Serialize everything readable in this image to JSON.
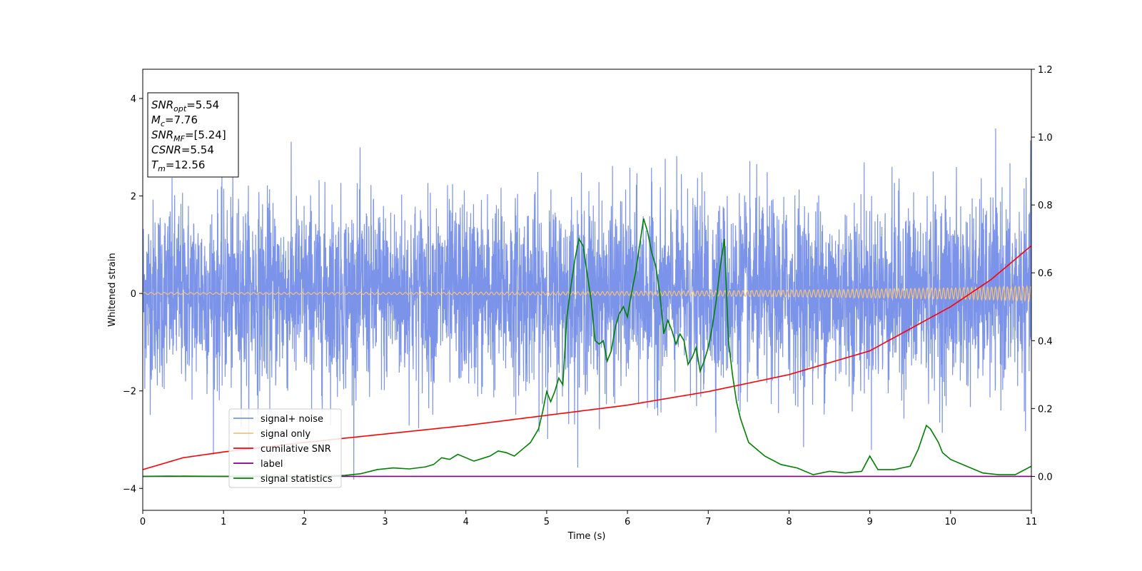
{
  "chart_data": {
    "type": "line",
    "xlabel": "Time (s)",
    "ylabel": "Whitened strain",
    "xlim": [
      0,
      11
    ],
    "ylim": [
      -4.45,
      4.6
    ],
    "y2lim": [
      -0.1,
      1.2
    ],
    "xticks": [
      "0",
      "1",
      "2",
      "3",
      "4",
      "5",
      "6",
      "7",
      "8",
      "9",
      "10",
      "11"
    ],
    "yticks": [
      "-4",
      "-2",
      "0",
      "2",
      "4"
    ],
    "y2ticks": [
      "0.0",
      "0.2",
      "0.4",
      "0.6",
      "0.8",
      "1.0",
      "1.2"
    ],
    "grid": false,
    "legend_placement": "lower-left",
    "info_box": [
      {
        "var": "SNR",
        "sub": "opt",
        "value": "=5.54"
      },
      {
        "var": "M",
        "sub": "c",
        "value": "=7.76"
      },
      {
        "var": "SNR",
        "sub": "MF",
        "value": "=[5.24]"
      },
      {
        "var": "CSNR",
        "sub": "",
        "value": "=5.54"
      },
      {
        "var": "T",
        "sub": "m",
        "value": "=12.56"
      }
    ],
    "series": [
      {
        "name": "signal+ noise",
        "axis": "left",
        "color": "#7b93e8",
        "kind": "noise",
        "noise_sigma": 1.0,
        "description_values": {
          "typical_range": [
            -2.7,
            2.7
          ],
          "max": 4.18,
          "min": -4.05
        }
      },
      {
        "name": "signal only",
        "axis": "left",
        "color": "#f5c27a",
        "kind": "chirp",
        "amplitude_start": 0.02,
        "amplitude_end": 0.15
      },
      {
        "name": "cumilative SNR",
        "axis": "right",
        "color": "#ff0000",
        "x": [
          0,
          0.5,
          1,
          2,
          3,
          4,
          5,
          6,
          7,
          8,
          9,
          10,
          10.5,
          11
        ],
        "y": [
          0.02,
          0.055,
          0.072,
          0.1,
          0.125,
          0.15,
          0.18,
          0.21,
          0.25,
          0.3,
          0.37,
          0.5,
          0.58,
          0.68
        ]
      },
      {
        "name": "label",
        "axis": "right",
        "color": "#800080",
        "x": [
          0,
          11
        ],
        "y": [
          0.0,
          0.0
        ]
      },
      {
        "name": "signal statistics",
        "axis": "right",
        "color": "#008000",
        "x": [
          0,
          0.3,
          1,
          2,
          2.5,
          2.7,
          2.9,
          3.1,
          3.3,
          3.5,
          3.6,
          3.7,
          3.8,
          3.9,
          4.0,
          4.1,
          4.3,
          4.4,
          4.5,
          4.6,
          4.7,
          4.8,
          4.9,
          4.95,
          5.0,
          5.05,
          5.1,
          5.15,
          5.2,
          5.25,
          5.3,
          5.35,
          5.4,
          5.45,
          5.5,
          5.55,
          5.6,
          5.65,
          5.7,
          5.75,
          5.8,
          5.85,
          5.9,
          5.95,
          6.0,
          6.05,
          6.1,
          6.15,
          6.2,
          6.25,
          6.3,
          6.35,
          6.4,
          6.45,
          6.5,
          6.55,
          6.6,
          6.65,
          6.7,
          6.75,
          6.8,
          6.85,
          6.9,
          6.95,
          7.0,
          7.05,
          7.1,
          7.15,
          7.2,
          7.25,
          7.3,
          7.35,
          7.4,
          7.5,
          7.7,
          7.9,
          8.1,
          8.3,
          8.5,
          8.7,
          8.9,
          9.0,
          9.1,
          9.3,
          9.5,
          9.6,
          9.7,
          9.75,
          9.8,
          9.85,
          9.9,
          10.0,
          10.2,
          10.4,
          10.6,
          10.8,
          11.0
        ],
        "y": [
          0.0,
          0.001,
          0.0,
          0.0,
          0.003,
          0.008,
          0.02,
          0.025,
          0.022,
          0.028,
          0.035,
          0.055,
          0.05,
          0.065,
          0.055,
          0.045,
          0.06,
          0.075,
          0.07,
          0.06,
          0.08,
          0.1,
          0.14,
          0.19,
          0.25,
          0.22,
          0.25,
          0.29,
          0.27,
          0.47,
          0.56,
          0.64,
          0.7,
          0.68,
          0.6,
          0.52,
          0.4,
          0.39,
          0.4,
          0.34,
          0.37,
          0.44,
          0.48,
          0.5,
          0.47,
          0.54,
          0.6,
          0.68,
          0.76,
          0.72,
          0.66,
          0.62,
          0.54,
          0.42,
          0.46,
          0.43,
          0.39,
          0.42,
          0.4,
          0.33,
          0.35,
          0.38,
          0.31,
          0.34,
          0.38,
          0.44,
          0.52,
          0.62,
          0.7,
          0.4,
          0.3,
          0.22,
          0.17,
          0.1,
          0.06,
          0.035,
          0.025,
          0.005,
          0.015,
          0.01,
          0.015,
          0.06,
          0.02,
          0.02,
          0.03,
          0.08,
          0.15,
          0.14,
          0.12,
          0.1,
          0.07,
          0.05,
          0.03,
          0.01,
          0.005,
          0.005,
          0.03
        ]
      }
    ]
  }
}
